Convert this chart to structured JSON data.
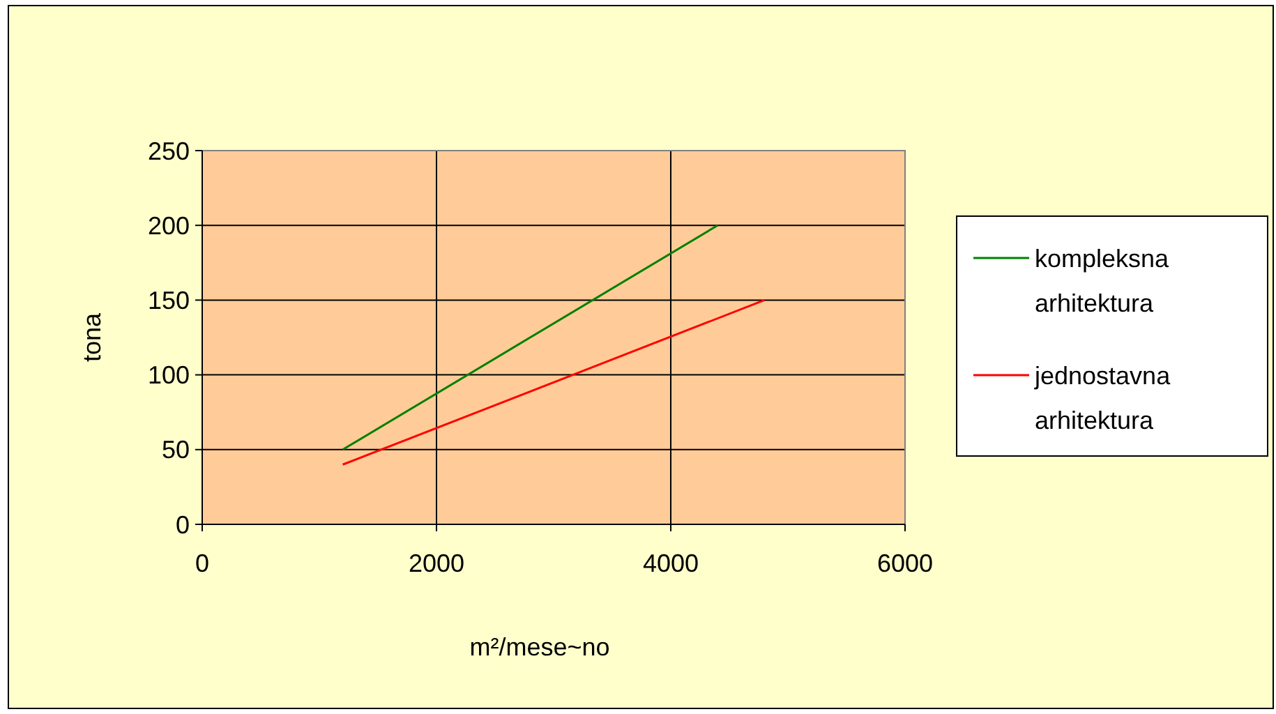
{
  "chart_data": {
    "type": "line",
    "xlabel": "m²/mese~no",
    "ylabel": "tona",
    "series": [
      {
        "name": "kompleksna arhitektura",
        "color": "#008000",
        "x": [
          1200,
          4400
        ],
        "values": [
          50,
          200
        ]
      },
      {
        "name": "jednostavna arhitektura",
        "color": "#ff0000",
        "x": [
          1200,
          4800
        ],
        "values": [
          40,
          150
        ]
      }
    ],
    "xlim": [
      0,
      6000
    ],
    "xticks": [
      0,
      2000,
      4000,
      6000
    ],
    "ylim": [
      0,
      250
    ],
    "yticks": [
      0,
      50,
      100,
      150,
      200,
      250
    ],
    "grid": true,
    "legend": "right",
    "marker": "none",
    "line_style": "solid"
  }
}
